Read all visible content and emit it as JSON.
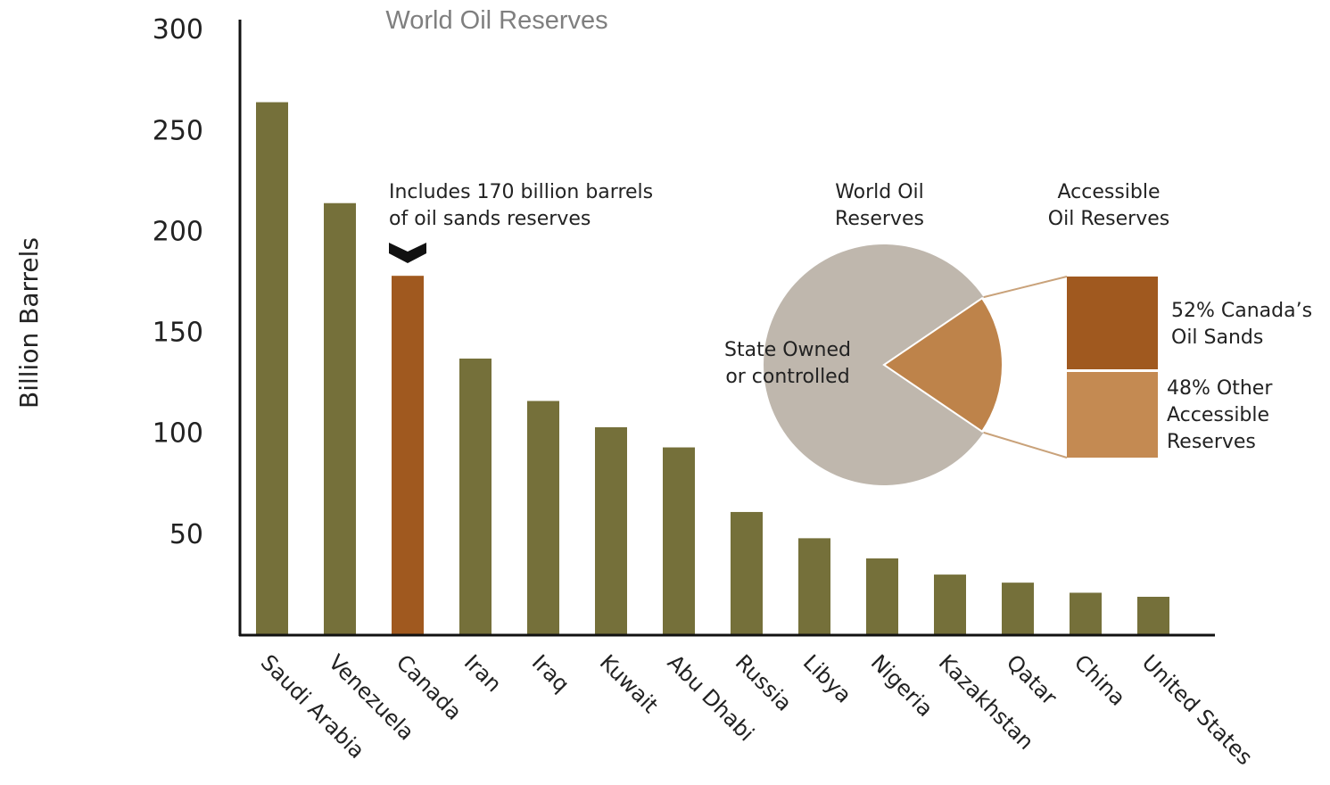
{
  "chart_data": {
    "type": "bar",
    "title": "World Oil Reserves",
    "ylabel": "Billion Barrels",
    "xlabel": "",
    "ylim": [
      0,
      300
    ],
    "yticks": [
      50,
      100,
      150,
      200,
      250,
      300
    ],
    "categories": [
      "Saudi Arabia",
      "Venezuela",
      "Canada",
      "Iran",
      "Iraq",
      "Kuwait",
      "Abu Dhabi",
      "Russia",
      "Libya",
      "Nigeria",
      "Kazakhstan",
      "Qatar",
      "China",
      "United States"
    ],
    "values": [
      264,
      214,
      178,
      137,
      116,
      103,
      93,
      61,
      48,
      38,
      30,
      26,
      21,
      19
    ],
    "highlight_category": "Canada",
    "colors": {
      "bar": "#75703a",
      "highlight": "#a0591f",
      "pie_main": "#bfb7ad",
      "pie_slice": "#be834a",
      "oil_sands": "#a0591f",
      "other_accessible": "#c48a52",
      "axis": "#111111"
    },
    "annotation": {
      "lines": [
        "Includes 170 billion barrels",
        "of oil sands reserves"
      ]
    },
    "inset": {
      "pie_title_lines": [
        "World Oil",
        "Reserves"
      ],
      "stack_title_lines": [
        "Accessible",
        "Oil Reserves"
      ],
      "pie_slices": [
        {
          "label_lines": [
            "State Owned",
            "or controlled"
          ],
          "fraction": 0.81
        },
        {
          "label_lines": [],
          "fraction": 0.19
        }
      ],
      "stack_segments": [
        {
          "label_lines": [
            "52% Canada’s",
            "Oil Sands"
          ],
          "percent": 52
        },
        {
          "label_lines": [
            "48% Other",
            "Accessible",
            "Reserves"
          ],
          "percent": 48
        }
      ]
    }
  }
}
